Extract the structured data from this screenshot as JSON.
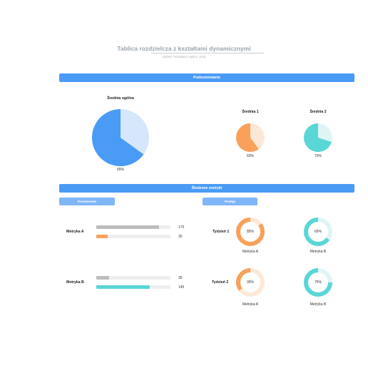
{
  "header": {
    "title": "Tablica rozdzielcza z kształtami dynamicznymi",
    "subtitle": "System Templates  |  April 8, 2025"
  },
  "summary": {
    "band_label": "Podsumowanie",
    "overall": {
      "label": "Średnia ogólna",
      "value": 65,
      "value_text": "65%",
      "color": "#4a9bf5",
      "track": "#d6e6fb"
    },
    "avg1": {
      "label": "Średnia 1",
      "value": 60,
      "value_text": "60%",
      "color": "#f9a15a",
      "track": "#fde8d7"
    },
    "avg2": {
      "label": "Średnia 2",
      "value": 70,
      "value_text": "70%",
      "color": "#5ad6d6",
      "track": "#dff5f5"
    }
  },
  "tracked": {
    "band_label": "Śledzone metryki",
    "comparison": {
      "pill_label": "Porównanie",
      "max_value": 200,
      "metrics": [
        {
          "label": "Metryka A",
          "bars": [
            {
              "value": 170,
              "value_text": "170",
              "color": "#bcbcbc"
            },
            {
              "value": 30,
              "value_text": "30",
              "color": "#f9a15a"
            }
          ]
        },
        {
          "label": "Metryka B",
          "bars": [
            {
              "value": 35,
              "value_text": "35",
              "color": "#bcbcbc"
            },
            {
              "value": 145,
              "value_text": "145",
              "color": "#5ad6d6"
            }
          ]
        }
      ]
    },
    "progress": {
      "pill_label": "Postęp",
      "weeks": [
        {
          "label": "Tydzień 1",
          "rings": [
            {
              "caption": "Metryka A",
              "value": 85,
              "value_text": "85%",
              "color": "#f9a15a",
              "track": "#fde8d7"
            },
            {
              "caption": "Metryka B",
              "value": 65,
              "value_text": "65%",
              "color": "#5ad6d6",
              "track": "#dff5f5"
            }
          ]
        },
        {
          "label": "Tydzień 2",
          "rings": [
            {
              "caption": "Metryka A",
              "value": 35,
              "value_text": "35%",
              "color": "#f9a15a",
              "track": "#fde8d7"
            },
            {
              "caption": "Metryka B",
              "value": 75,
              "value_text": "75%",
              "color": "#5ad6d6",
              "track": "#dff5f5"
            }
          ]
        }
      ]
    }
  }
}
